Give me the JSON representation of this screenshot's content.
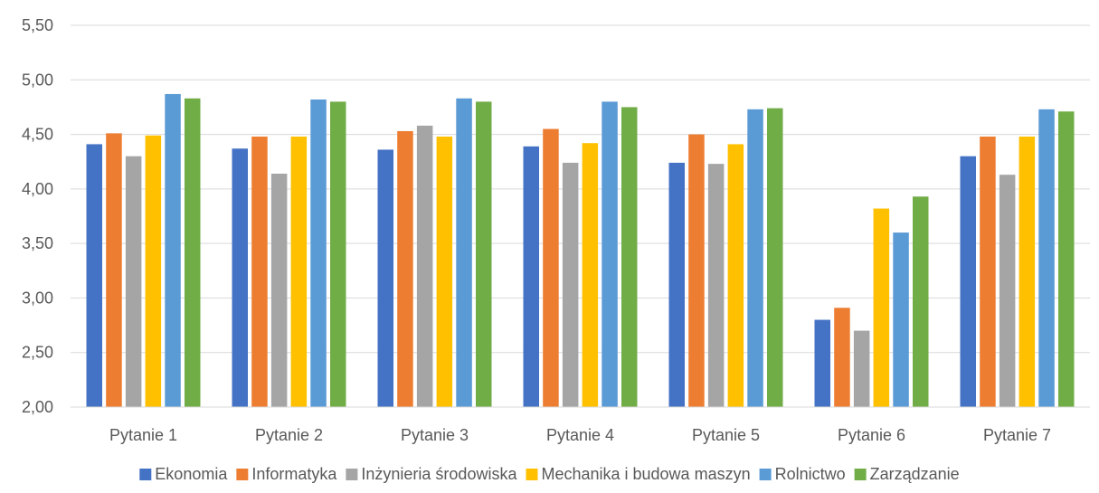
{
  "chart_data": {
    "type": "bar",
    "title": "",
    "xlabel": "",
    "ylabel": "",
    "ylim": [
      2.0,
      5.5
    ],
    "y_ticks": [
      "2,00",
      "2,50",
      "3,00",
      "3,50",
      "4,00",
      "4,50",
      "5,00",
      "5,50"
    ],
    "y_tick_values": [
      2.0,
      2.5,
      3.0,
      3.5,
      4.0,
      4.5,
      5.0,
      5.5
    ],
    "grid": true,
    "legend_position": "bottom",
    "categories": [
      "Pytanie 1",
      "Pytanie 2",
      "Pytanie 3",
      "Pytanie 4",
      "Pytanie 5",
      "Pytanie 6",
      "Pytanie 7"
    ],
    "series": [
      {
        "name": "Ekonomia",
        "color": "#4472C4",
        "values": [
          4.41,
          4.37,
          4.36,
          4.39,
          4.24,
          2.8,
          4.3
        ]
      },
      {
        "name": "Informatyka",
        "color": "#ED7D31",
        "values": [
          4.51,
          4.48,
          4.53,
          4.55,
          4.5,
          2.91,
          4.48
        ]
      },
      {
        "name": "Inżynieria środowiska",
        "color": "#A5A5A5",
        "values": [
          4.3,
          4.14,
          4.58,
          4.24,
          4.23,
          2.7,
          4.13
        ]
      },
      {
        "name": "Mechanika i budowa maszyn",
        "color": "#FFC000",
        "values": [
          4.49,
          4.48,
          4.48,
          4.42,
          4.41,
          3.82,
          4.48
        ]
      },
      {
        "name": "Rolnictwo",
        "color": "#5B9BD5",
        "values": [
          4.87,
          4.82,
          4.83,
          4.8,
          4.73,
          3.6,
          4.73
        ]
      },
      {
        "name": "Zarządzanie",
        "color": "#70AD47",
        "values": [
          4.83,
          4.8,
          4.8,
          4.75,
          4.74,
          3.93,
          4.71
        ]
      }
    ]
  }
}
